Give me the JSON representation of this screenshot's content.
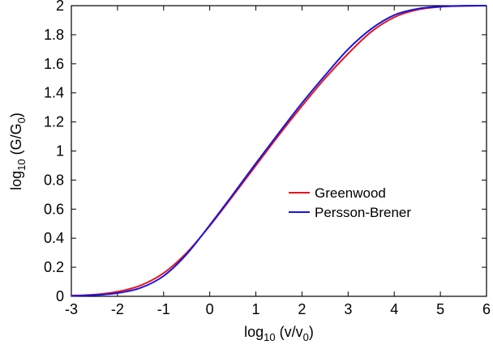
{
  "chart_data": {
    "type": "line",
    "title": "",
    "xlabel": {
      "base": "log",
      "sub": "10",
      "rest": " (v/v",
      "sub2": "0",
      "tail": ")"
    },
    "ylabel": {
      "base": "log",
      "sub": "10",
      "rest": " (G/G",
      "sub2": "0",
      "tail": ")"
    },
    "xlim": [
      -3,
      6
    ],
    "ylim": [
      0,
      2
    ],
    "xticks": [
      "-3",
      "-2",
      "-1",
      "0",
      "1",
      "2",
      "3",
      "4",
      "5",
      "6"
    ],
    "yticks": [
      "0",
      "0.2",
      "0.4",
      "0.6",
      "0.8",
      "1",
      "1.2",
      "1.4",
      "1.6",
      "1.8",
      "2"
    ],
    "grid": false,
    "legend_position": "center-right",
    "series": [
      {
        "name": "Greenwood",
        "color": "#e8141c",
        "x": [
          -3,
          -2.5,
          -2,
          -1.5,
          -1,
          -0.5,
          0,
          0.5,
          1,
          1.5,
          2,
          2.5,
          3,
          3.5,
          4,
          4.5,
          5,
          5.5,
          6
        ],
        "y": [
          0.005,
          0.012,
          0.032,
          0.075,
          0.16,
          0.3,
          0.485,
          0.69,
          0.9,
          1.11,
          1.31,
          1.5,
          1.67,
          1.82,
          1.92,
          1.972,
          1.992,
          1.998,
          2.0
        ]
      },
      {
        "name": "Persson-Brener",
        "color": "#1414e6",
        "x": [
          -3,
          -2.5,
          -2,
          -1.5,
          -1,
          -0.5,
          0,
          0.5,
          1,
          1.5,
          2,
          2.5,
          3,
          3.5,
          4,
          4.5,
          5,
          5.5,
          6
        ],
        "y": [
          0.003,
          0.008,
          0.022,
          0.058,
          0.14,
          0.29,
          0.49,
          0.7,
          0.915,
          1.125,
          1.33,
          1.52,
          1.7,
          1.84,
          1.935,
          1.978,
          1.994,
          1.999,
          2.0
        ]
      }
    ]
  }
}
